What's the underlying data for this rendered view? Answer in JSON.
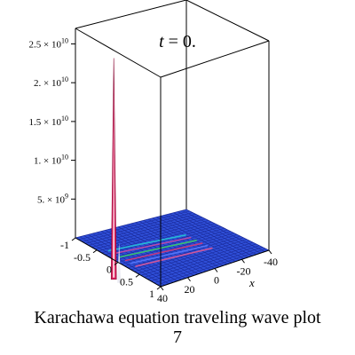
{
  "chart_data": {
    "type": "surface3d",
    "title_var": "t",
    "title_eq": " = 0.",
    "xlabel": "x",
    "z_ticks": [
      {
        "label": "5. × 10",
        "exp": "9",
        "value": 5000000000
      },
      {
        "label": "1. × 10",
        "exp": "10",
        "value": 10000000000
      },
      {
        "label": "1.5 × 10",
        "exp": "10",
        "value": 15000000000
      },
      {
        "label": "2. × 10",
        "exp": "10",
        "value": 20000000000
      },
      {
        "label": "2.5 × 10",
        "exp": "10",
        "value": 25000000000
      }
    ],
    "y_ticks": [
      "-1",
      "-0.5",
      "0",
      "0.5",
      "1"
    ],
    "x_ticks": [
      "40",
      "20",
      "0",
      "-20",
      "-40"
    ],
    "zlim": [
      0,
      27000000000
    ],
    "peak": {
      "y": -0.1,
      "x": 40,
      "z": 26000000000
    },
    "colors": {
      "surface": "#2f4fd8",
      "peak": "#d81e5b",
      "mesh": "#1a2a9a",
      "highlight": "#ffffff"
    }
  },
  "caption": {
    "line1": "Karachawa equation  traveling wave plot",
    "line2": "7"
  }
}
